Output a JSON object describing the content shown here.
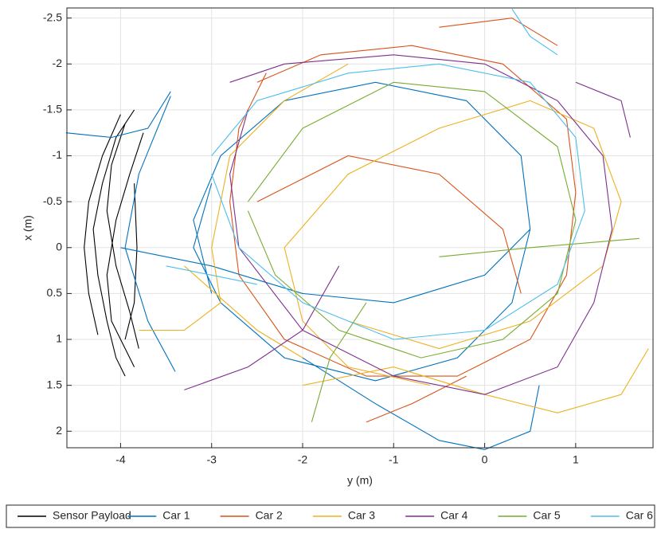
{
  "chart_data": {
    "type": "line",
    "xlabel": "y (m)",
    "ylabel": "x (m)",
    "xlim": [
      -4.59,
      1.85
    ],
    "ylim": [
      -2.61,
      2.18
    ],
    "y_reversed": true,
    "xticks": [
      -4,
      -3,
      -2,
      -1,
      0,
      1
    ],
    "yticks": [
      -2.5,
      -2,
      -1.5,
      -1,
      -0.5,
      0,
      0.5,
      1,
      1.5,
      2
    ],
    "grid": true,
    "legend": "bottom",
    "series": [
      {
        "name": "Sensor Payload",
        "color": "#000000",
        "x": [
          -3.85,
          -4.05,
          -4.2,
          -4.3,
          -4.25,
          -4.15,
          -4.05,
          -3.95,
          null,
          -4.0,
          -4.2,
          -4.35,
          -4.4,
          -4.35,
          -4.25,
          null,
          -3.75,
          -3.9,
          -4.05,
          -4.15,
          -4.1,
          -3.9,
          -3.85,
          null,
          -3.95,
          -4.1,
          -4.15,
          -4.05,
          -3.9,
          -3.8,
          null,
          -3.85,
          -3.82,
          -3.85,
          -3.95
        ],
        "values": [
          -1.5,
          -1.2,
          -0.7,
          -0.2,
          0.3,
          0.8,
          1.2,
          1.4,
          null,
          -1.45,
          -1.0,
          -0.5,
          0,
          0.5,
          0.95,
          null,
          -1.25,
          -0.8,
          -0.3,
          0.3,
          0.8,
          1.2,
          1.3,
          null,
          -1.35,
          -0.9,
          -0.4,
          0.2,
          0.7,
          1.1,
          null,
          -0.7,
          0,
          0.6,
          1.0
        ]
      },
      {
        "name": "Car 1",
        "color": "#0072bd",
        "x": [
          -4.6,
          -4.1,
          -3.7,
          -3.45,
          null,
          -3.45,
          -3.8,
          -3.95,
          -3.7,
          -3.4,
          null,
          -3.0,
          -3.2,
          -2.9,
          -2.2,
          -1.2,
          -0.2,
          0.4,
          0.5,
          0.3,
          -0.3,
          -1.2,
          -2.2,
          -2.9,
          -3.2,
          -3.0,
          null,
          -2.0,
          -1.2,
          -0.5,
          0.0,
          0.5,
          0.6,
          null,
          -4.0,
          -3.0,
          -2.0,
          -1.0,
          0.0,
          0.5
        ],
        "values": [
          -1.25,
          -1.2,
          -1.3,
          -1.7,
          null,
          -1.65,
          -0.8,
          0,
          0.8,
          1.35,
          null,
          0.5,
          -0.3,
          -1.0,
          -1.6,
          -1.8,
          -1.6,
          -1.0,
          -0.2,
          0.6,
          1.2,
          1.45,
          1.2,
          0.6,
          0.0,
          -0.7,
          null,
          1.2,
          1.7,
          2.1,
          2.2,
          2.0,
          1.5,
          null,
          0.0,
          0.2,
          0.5,
          0.6,
          0.3,
          -0.2
        ]
      },
      {
        "name": "Car 2",
        "color": "#d95319",
        "x": [
          -2.5,
          -1.8,
          -0.8,
          0.2,
          0.9,
          1.0,
          0.9,
          0.5,
          -0.3,
          -1.3,
          -2.2,
          -2.7,
          -2.8,
          -2.7,
          -2.4,
          null,
          -0.5,
          0.3,
          0.8,
          null,
          -1.3,
          -0.8,
          -0.2,
          null,
          -2.5,
          -1.5,
          -0.5,
          0.2,
          0.4
        ],
        "values": [
          -1.8,
          -2.1,
          -2.2,
          -2.0,
          -1.4,
          -0.6,
          0.3,
          1.0,
          1.4,
          1.4,
          1.0,
          0.3,
          -0.5,
          -1.3,
          -1.9,
          null,
          -2.4,
          -2.5,
          -2.2,
          null,
          1.9,
          1.7,
          1.4,
          null,
          -0.5,
          -1.0,
          -0.8,
          -0.2,
          0.5
        ]
      },
      {
        "name": "Car 3",
        "color": "#edb120",
        "x": [
          -3.8,
          -3.3,
          -2.9,
          -3.0,
          -2.8,
          -2.2,
          -1.5,
          null,
          -2.0,
          -1.0,
          0.0,
          0.8,
          1.5,
          1.8,
          null,
          -1.5,
          -0.5,
          0.5,
          1.3,
          1.5,
          1.2,
          0.5,
          -0.5,
          -1.5,
          -2.2,
          -2.0,
          -1.5,
          -0.6,
          null,
          -3.3,
          -2.5,
          -2.0
        ],
        "values": [
          0.9,
          0.9,
          0.6,
          0.0,
          -1.0,
          -1.6,
          -2.0,
          null,
          1.5,
          1.3,
          1.6,
          1.8,
          1.6,
          1.1,
          null,
          0.8,
          1.1,
          0.8,
          0.2,
          -0.5,
          -1.3,
          -1.6,
          -1.3,
          -0.8,
          0.0,
          0.8,
          1.3,
          1.5,
          null,
          0.2,
          0.9,
          1.2
        ]
      },
      {
        "name": "Car 4",
        "color": "#7e2f8e",
        "x": [
          -3.3,
          -2.6,
          -2.0,
          -1.6,
          null,
          -2.8,
          -2.2,
          -1.0,
          0.0,
          0.8,
          1.3,
          1.4,
          1.2,
          0.8,
          0.0,
          -1.0,
          -2.0,
          -2.7,
          -2.8,
          -2.6,
          null,
          1.0,
          1.5,
          1.6
        ],
        "values": [
          1.55,
          1.3,
          0.9,
          0.2,
          null,
          -1.8,
          -2.0,
          -2.1,
          -2.0,
          -1.6,
          -1.0,
          -0.2,
          0.6,
          1.3,
          1.6,
          1.4,
          0.9,
          0.0,
          -0.8,
          -1.5,
          null,
          -1.8,
          -1.6,
          -1.2
        ]
      },
      {
        "name": "Car 5",
        "color": "#77ac30",
        "x": [
          -1.9,
          -1.7,
          -1.3,
          null,
          -2.6,
          -2.0,
          -1.0,
          0.0,
          0.8,
          1.0,
          0.8,
          0.2,
          -0.7,
          -1.6,
          -2.3,
          -2.6,
          null,
          -0.5,
          0.5,
          1.7
        ],
        "values": [
          1.9,
          1.2,
          0.6,
          null,
          -0.5,
          -1.3,
          -1.8,
          -1.7,
          -1.1,
          -0.3,
          0.5,
          1.0,
          1.2,
          0.9,
          0.3,
          -0.4,
          null,
          0.1,
          0.0,
          -0.1
        ]
      },
      {
        "name": "Car 6",
        "color": "#4dbeee",
        "x": [
          0.3,
          0.5,
          0.8,
          null,
          -3.0,
          -2.5,
          -1.5,
          -0.5,
          0.5,
          1.0,
          1.1,
          0.8,
          0.0,
          -1.0,
          -2.0,
          -2.7,
          -3.0,
          null,
          -3.5,
          -3.0,
          -2.5
        ],
        "values": [
          -2.6,
          -2.3,
          -2.1,
          null,
          -1.0,
          -1.6,
          -1.9,
          -2.0,
          -1.8,
          -1.2,
          -0.4,
          0.4,
          0.9,
          1.0,
          0.6,
          0.0,
          -0.8,
          null,
          0.2,
          0.3,
          0.4
        ]
      }
    ]
  }
}
